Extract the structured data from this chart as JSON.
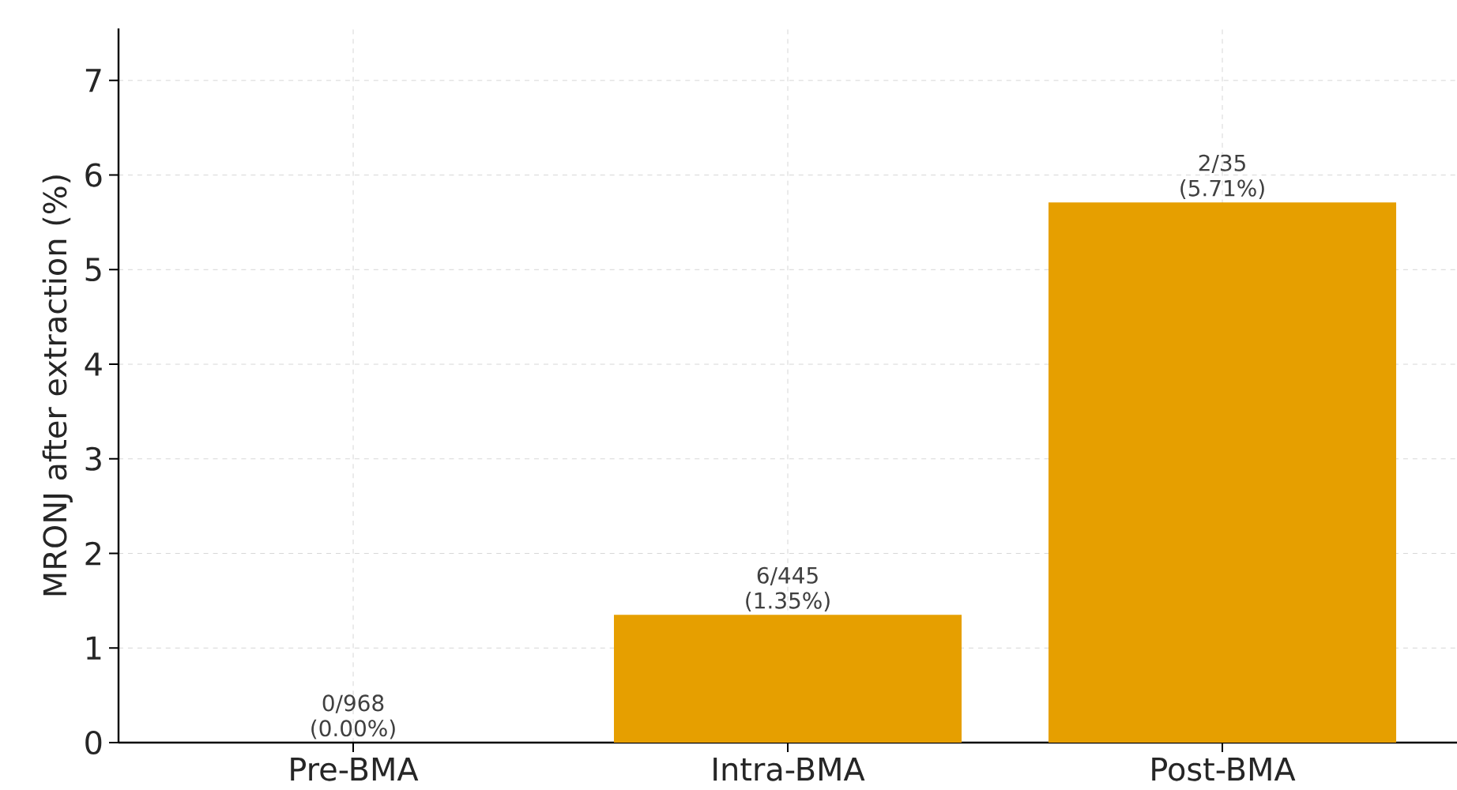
{
  "chart_data": {
    "type": "bar",
    "ylabel": "MRONJ after extraction (%)",
    "categories": [
      "Pre-BMA",
      "Intra-BMA",
      "Post-BMA"
    ],
    "values": [
      0,
      1.35,
      5.71
    ],
    "value_labels": [
      "0/968 (0.00%)",
      "6/445 (1.35%)",
      "2/35 (5.71%)"
    ],
    "color": "#e69f00",
    "ylim": [
      0,
      7.55
    ],
    "yticks": [
      0,
      1,
      2,
      3,
      4,
      5,
      6,
      7
    ],
    "grid": true
  }
}
